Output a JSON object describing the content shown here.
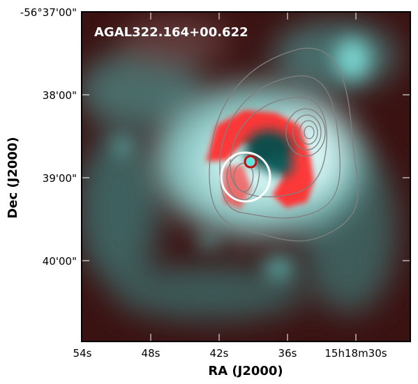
{
  "image": {
    "label": "AGAL322.164+00.622",
    "colors": {
      "background_dark": "#3a1010",
      "cyan_emission": "#9ff2f0",
      "red_emission": "#ff2a2a",
      "contour": "#7a7a7a",
      "beam_circle": "#ffffff",
      "marker_circle": "#c01010"
    }
  },
  "axes": {
    "xlabel": "RA (J2000)",
    "ylabel": "Dec (J2000)",
    "xticks": [
      "54s",
      "48s",
      "42s",
      "36s",
      "15h18m30s"
    ],
    "yticks": [
      "-56°37'00\"",
      "38'00\"",
      "39'00\"",
      "40'00\""
    ]
  }
}
